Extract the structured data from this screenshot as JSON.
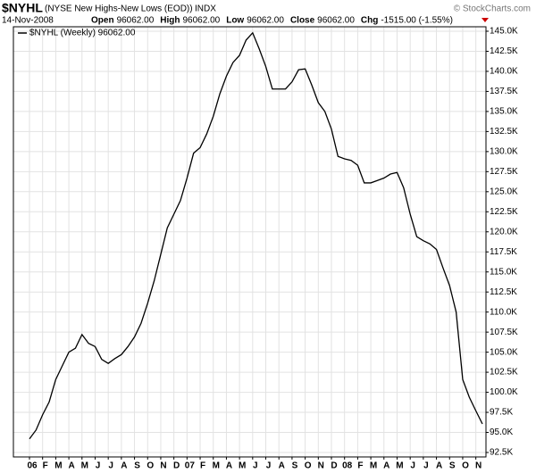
{
  "chart_data": {
    "type": "line",
    "symbol": "$NYHL",
    "description": "(NYSE New Highs-New Lows (EOD))",
    "exchange": "INDX",
    "date": "14-Nov-2008",
    "credit": "© StockCharts.com",
    "quote": [
      {
        "label": "Open",
        "value": "96062.00"
      },
      {
        "label": "High",
        "value": "96062.00"
      },
      {
        "label": "Low",
        "value": "96062.00"
      },
      {
        "label": "Close",
        "value": "96062.00"
      },
      {
        "label": "Chg",
        "value": "-1515.00 (-1.55%)"
      }
    ],
    "grid": true,
    "categories": [
      "06",
      null,
      "F",
      null,
      "M",
      null,
      "A",
      null,
      "M",
      null,
      "J",
      null,
      "J",
      null,
      "A",
      null,
      "S",
      null,
      "O",
      null,
      "N",
      null,
      "D",
      null,
      "07",
      null,
      "F",
      null,
      "M",
      null,
      "A",
      null,
      "M",
      null,
      "J",
      null,
      "J",
      null,
      "A",
      null,
      "S",
      null,
      "O",
      null,
      "N",
      null,
      "D",
      null,
      "08",
      null,
      "F",
      null,
      "M",
      null,
      "A",
      null,
      "M",
      null,
      "J",
      null,
      "J",
      null,
      "A",
      null,
      "S",
      null,
      "O",
      null,
      "N",
      null
    ],
    "series": [
      {
        "name": "$NYHL (Weekly) 96062.00",
        "color": "#000000",
        "values": [
          94200,
          95300,
          97200,
          98800,
          101600,
          103300,
          105000,
          105500,
          107200,
          106100,
          105700,
          104100,
          103600,
          104200,
          104700,
          105700,
          106900,
          108600,
          111100,
          113900,
          117200,
          120500,
          122200,
          123900,
          126700,
          129800,
          130500,
          132200,
          134400,
          137200,
          139400,
          141100,
          142000,
          143900,
          144800,
          142800,
          140600,
          137800,
          137800,
          137800,
          138700,
          140200,
          140300,
          138300,
          136100,
          135000,
          132800,
          129400,
          129100,
          128900,
          128300,
          126100,
          126100,
          126400,
          126700,
          127200,
          127400,
          125500,
          122200,
          119400,
          118900,
          118500,
          117800,
          115500,
          113300,
          110000,
          101600,
          99400,
          97700,
          96062
        ]
      }
    ],
    "ylim": [
      92500,
      145000
    ],
    "yticks": [
      {
        "value": 92500,
        "label": "92.5K"
      },
      {
        "value": 95000,
        "label": "95.0K"
      },
      {
        "value": 97500,
        "label": "97.5K"
      },
      {
        "value": 100000,
        "label": "100.0K"
      },
      {
        "value": 102500,
        "label": "102.5K"
      },
      {
        "value": 105000,
        "label": "105.0K"
      },
      {
        "value": 107500,
        "label": "107.5K"
      },
      {
        "value": 110000,
        "label": "110.0K"
      },
      {
        "value": 112500,
        "label": "112.5K"
      },
      {
        "value": 115000,
        "label": "115.0K"
      },
      {
        "value": 117500,
        "label": "117.5K"
      },
      {
        "value": 120000,
        "label": "120.0K"
      },
      {
        "value": 122500,
        "label": "122.5K"
      },
      {
        "value": 125000,
        "label": "125.0K"
      },
      {
        "value": 127500,
        "label": "127.5K"
      },
      {
        "value": 130000,
        "label": "130.0K"
      },
      {
        "value": 132500,
        "label": "132.5K"
      },
      {
        "value": 135000,
        "label": "135.0K"
      },
      {
        "value": 137500,
        "label": "137.5K"
      },
      {
        "value": 140000,
        "label": "140.0K"
      },
      {
        "value": 142500,
        "label": "142.5K"
      },
      {
        "value": 145000,
        "label": "145.0K"
      }
    ]
  }
}
